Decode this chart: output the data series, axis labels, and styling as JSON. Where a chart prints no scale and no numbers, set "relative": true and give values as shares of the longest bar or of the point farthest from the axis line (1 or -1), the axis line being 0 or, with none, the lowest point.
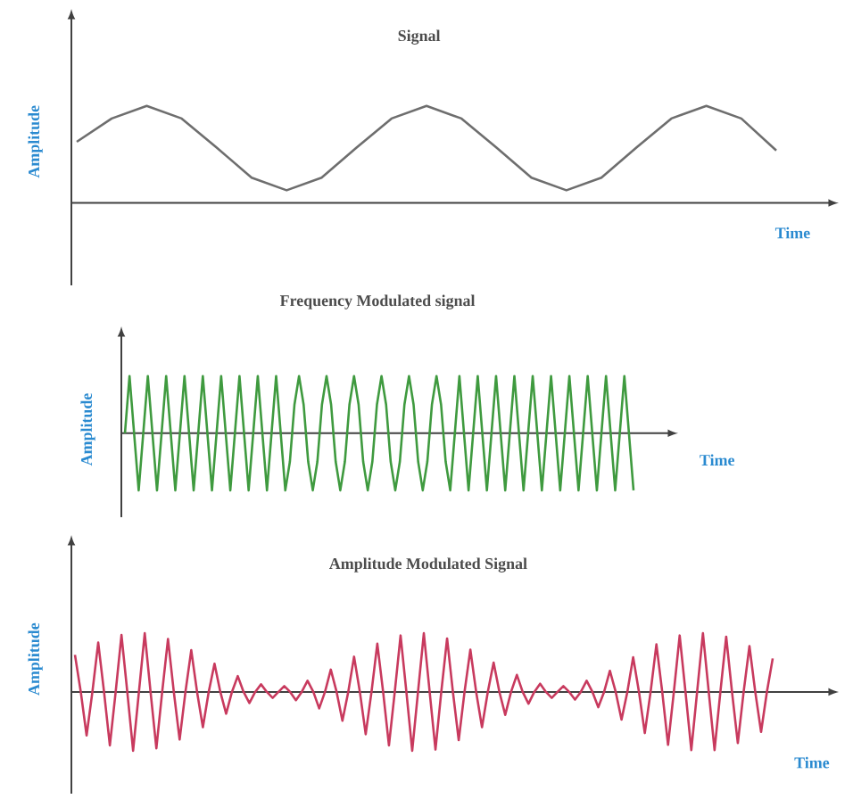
{
  "chart_data": [
    {
      "type": "line",
      "relative": true,
      "title": "Signal",
      "xlabel": "Time",
      "ylabel": "Amplitude",
      "categories": [
        null,
        null,
        null,
        null,
        null,
        null,
        null,
        null,
        null,
        null,
        null,
        null,
        null,
        null,
        null,
        null,
        null,
        null,
        null,
        null,
        null
      ],
      "series": [
        {
          "color": "#6e6e6e",
          "values": [
            0.63,
            0.87,
            1,
            0.87,
            0.57,
            0.26,
            0.13,
            0.26,
            0.57,
            0.87,
            1,
            0.87,
            0.57,
            0.26,
            0.13,
            0.26,
            0.57,
            0.87,
            1,
            0.87,
            0.54
          ]
        }
      ]
    },
    {
      "type": "line",
      "relative": true,
      "title": "Frequency Modulated signal",
      "xlabel": "Time",
      "ylabel": "Amplitude",
      "categories": [
        null,
        null,
        null,
        null,
        null,
        null,
        null,
        null,
        null,
        null,
        null,
        null,
        null,
        null,
        null,
        null,
        null,
        null,
        null,
        null,
        null,
        null,
        null,
        null,
        null,
        null,
        null,
        null,
        null,
        null,
        null,
        null,
        null,
        null,
        null,
        null,
        null,
        null,
        null,
        null,
        null,
        null,
        null,
        null,
        null,
        null,
        null,
        null,
        null,
        null,
        null,
        null,
        null,
        null,
        null,
        null,
        null,
        null,
        null,
        null,
        null,
        null,
        null,
        null,
        null,
        null,
        null,
        null,
        null,
        null,
        null,
        null,
        null,
        null,
        null,
        null,
        null,
        null,
        null,
        null,
        null,
        null,
        null,
        null,
        null,
        null,
        null,
        null,
        null,
        null,
        null,
        null,
        null,
        null,
        null,
        null,
        null,
        null,
        null,
        null,
        null,
        null,
        null,
        null,
        null,
        null,
        null,
        null,
        null,
        null,
        null,
        null
      ],
      "series": [
        {
          "color": "#3f9a3f",
          "values": [
            0,
            1,
            0,
            -1,
            0,
            1,
            0,
            -1,
            0,
            1,
            0,
            -1,
            0,
            1,
            0,
            -1,
            0,
            1,
            0,
            -1,
            0,
            1,
            0,
            -1,
            0,
            1,
            0,
            -1,
            0,
            1,
            0,
            -1,
            0,
            1,
            0,
            -1,
            -0.5,
            0.5,
            1,
            0.5,
            -0.5,
            -1,
            -0.5,
            0.5,
            1,
            0.5,
            -0.5,
            -1,
            -0.5,
            0.5,
            1,
            0.5,
            -0.5,
            -1,
            -0.5,
            0.5,
            1,
            0.5,
            -0.5,
            -1,
            -0.5,
            0.5,
            1,
            0.5,
            -0.5,
            -1,
            -0.5,
            0.5,
            1,
            0.5,
            -0.5,
            -1,
            0,
            1,
            0,
            -1,
            0,
            1,
            0,
            -1,
            0,
            1,
            0,
            -1,
            0,
            1,
            0,
            -1,
            0,
            1,
            0,
            -1,
            0,
            1,
            0,
            -1,
            0,
            1,
            0,
            -1,
            0,
            1,
            0,
            -1,
            0,
            1,
            0,
            -1,
            0,
            1,
            0,
            -1
          ]
        }
      ]
    },
    {
      "type": "line",
      "relative": true,
      "title": "Amplitude Modulated Signal",
      "xlabel": "Time",
      "ylabel": "Amplitude",
      "categories": [
        null,
        null,
        null,
        null,
        null,
        null,
        null,
        null,
        null,
        null,
        null,
        null,
        null,
        null,
        null,
        null,
        null,
        null,
        null,
        null,
        null,
        null,
        null,
        null,
        null,
        null,
        null,
        null,
        null,
        null,
        null,
        null,
        null,
        null,
        null,
        null,
        null,
        null,
        null,
        null,
        null,
        null,
        null,
        null,
        null,
        null,
        null,
        null,
        null,
        null,
        null,
        null,
        null,
        null,
        null,
        null,
        null,
        null,
        null,
        null,
        null,
        null,
        null,
        null,
        null,
        null,
        null,
        null,
        null,
        null,
        null,
        null,
        null,
        null,
        null,
        null,
        null,
        null,
        null,
        null,
        null,
        null,
        null,
        null,
        null,
        null,
        null,
        null,
        null,
        null,
        null,
        null,
        null,
        null,
        null,
        null,
        null,
        null,
        null,
        null,
        null,
        null,
        null,
        null,
        null,
        null,
        null,
        null,
        null,
        null,
        null,
        null,
        null,
        null,
        null,
        null,
        null,
        null,
        null,
        null,
        null
      ],
      "series": [
        {
          "color": "#c83a5e",
          "values": [
            0.63,
            0,
            -0.74,
            0,
            0.84,
            0,
            -0.91,
            0,
            0.97,
            0,
            -1,
            0,
            1,
            0,
            -0.96,
            0,
            0.9,
            0,
            -0.81,
            0,
            0.71,
            0,
            -0.6,
            0,
            0.48,
            0,
            -0.37,
            0,
            0.27,
            0,
            -0.19,
            0,
            0.13,
            0,
            -0.1,
            0,
            0.1,
            0,
            -0.14,
            0,
            0.19,
            0,
            -0.28,
            0,
            0.38,
            0,
            -0.49,
            0,
            0.6,
            0,
            -0.72,
            0,
            0.82,
            0,
            -0.91,
            0,
            0.96,
            0,
            -1,
            0,
            1,
            0,
            -0.98,
            0,
            0.91,
            0,
            -0.82,
            0,
            0.72,
            0,
            -0.6,
            0,
            0.5,
            0,
            -0.39,
            0,
            0.29,
            0,
            -0.2,
            0,
            0.14,
            0,
            -0.1,
            0,
            0.1,
            0,
            -0.13,
            0,
            0.19,
            0,
            -0.26,
            0,
            0.36,
            0,
            -0.47,
            0,
            0.59,
            0,
            -0.7,
            0,
            0.81,
            0,
            -0.9,
            0,
            0.96,
            0,
            -0.99,
            0,
            1,
            0,
            -0.99,
            0,
            0.94,
            0,
            -0.87,
            0,
            0.78,
            0,
            -0.68,
            0,
            0.57
          ]
        }
      ]
    }
  ]
}
